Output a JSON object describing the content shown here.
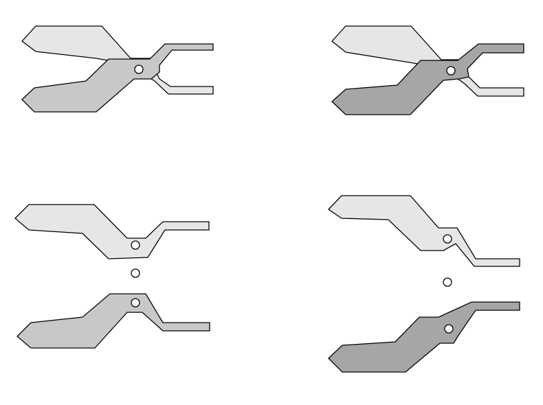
{
  "colors": {
    "background": "#ffffff",
    "stroke": "#000000",
    "jaw_light": "#e6e6e6",
    "jaw_medium": "#c8c8c8",
    "jaw_dark": "#a6a6a6",
    "pivot_fill": "#ffffff"
  },
  "panels": [
    {
      "name": "assembled-pliers-medium",
      "upper_fill": "jaw_light",
      "lower_fill": "jaw_medium"
    },
    {
      "name": "assembled-pliers-dark",
      "upper_fill": "jaw_light",
      "lower_fill": "jaw_dark"
    },
    {
      "name": "exploded-pliers-medium",
      "upper_fill": "jaw_light",
      "lower_fill": "jaw_medium"
    },
    {
      "name": "exploded-pliers-dark",
      "upper_fill": "jaw_light",
      "lower_fill": "jaw_dark"
    }
  ]
}
